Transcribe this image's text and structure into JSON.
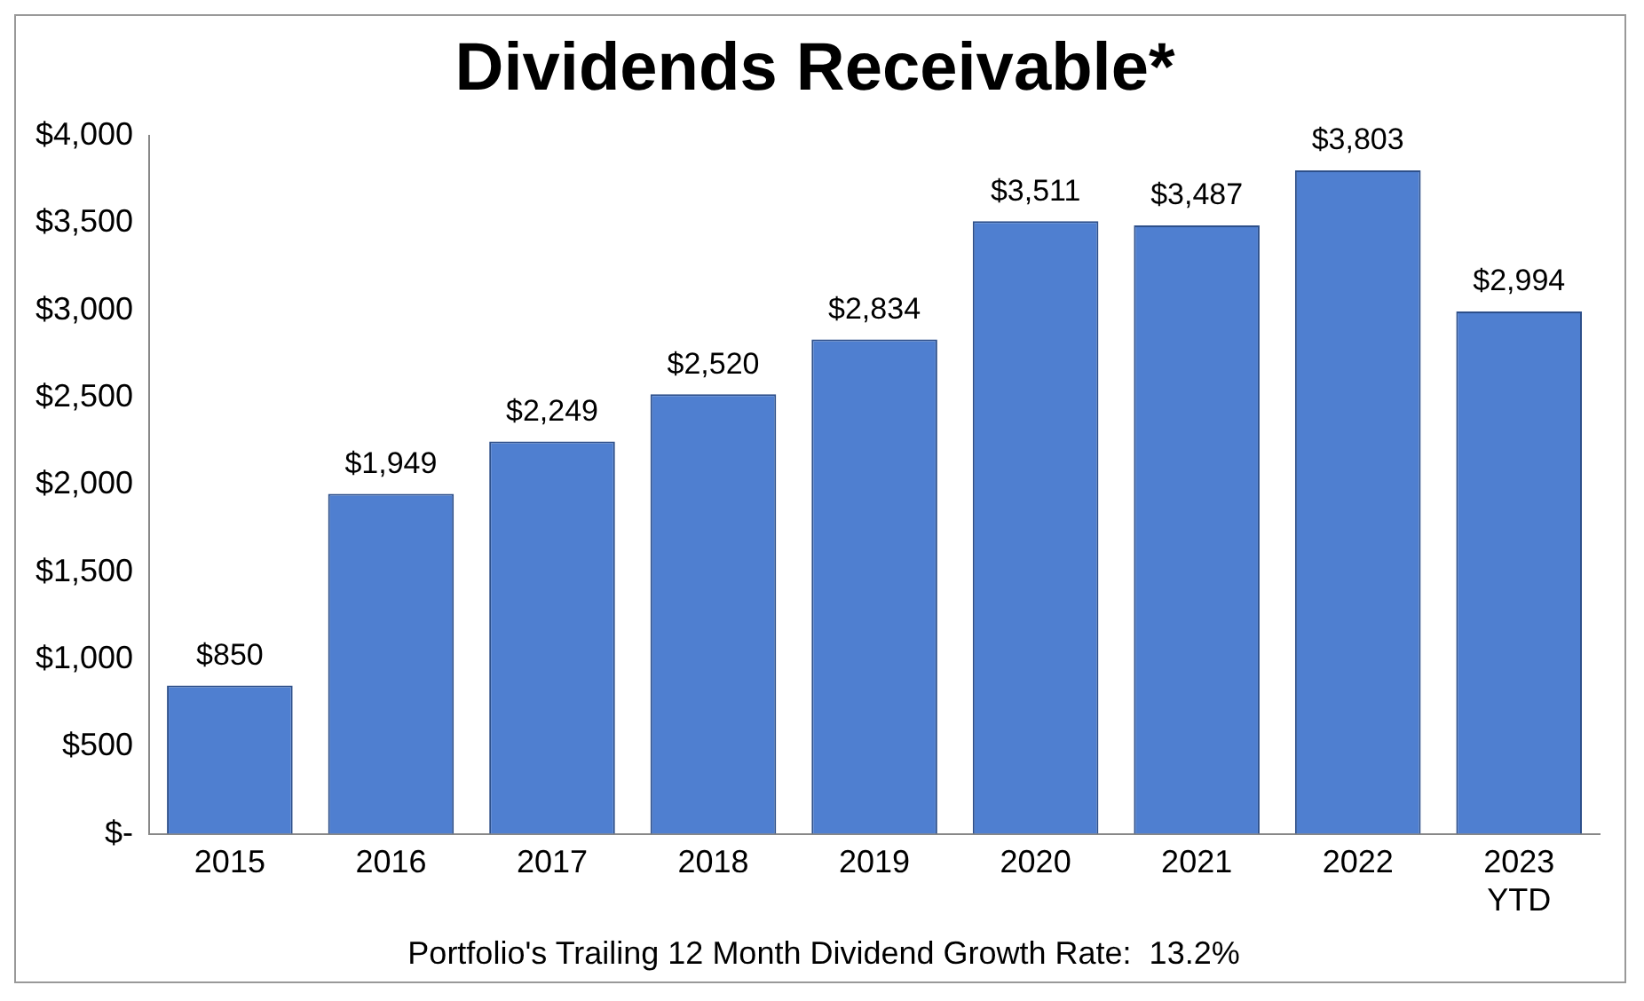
{
  "chart_data": {
    "type": "bar",
    "title": "Dividends Receivable*",
    "categories": [
      "2015",
      "2016",
      "2017",
      "2018",
      "2019",
      "2020",
      "2021",
      "2022",
      "2023\nYTD"
    ],
    "values": [
      850,
      1949,
      2249,
      2520,
      2834,
      3511,
      3487,
      3803,
      2994
    ],
    "value_labels": [
      "$850",
      "$1,949",
      "$2,249",
      "$2,520",
      "$2,834",
      "$3,511",
      "$3,487",
      "$3,803",
      "$2,994"
    ],
    "color": "#4f7fd0",
    "ylim": [
      0,
      4000
    ],
    "yticks": [
      {
        "value": 0,
        "label": "$-"
      },
      {
        "value": 500,
        "label": "$500"
      },
      {
        "value": 1000,
        "label": "$1,000"
      },
      {
        "value": 1500,
        "label": "$1,500"
      },
      {
        "value": 2000,
        "label": "$2,000"
      },
      {
        "value": 2500,
        "label": "$2,500"
      },
      {
        "value": 3000,
        "label": "$3,000"
      },
      {
        "value": 3500,
        "label": "$3,500"
      },
      {
        "value": 4000,
        "label": "$4,000"
      }
    ],
    "grid": false,
    "legend": false,
    "annotations": [
      "Portfolio's Trailing 12 Month Dividend Growth Rate:  13.2%"
    ]
  }
}
